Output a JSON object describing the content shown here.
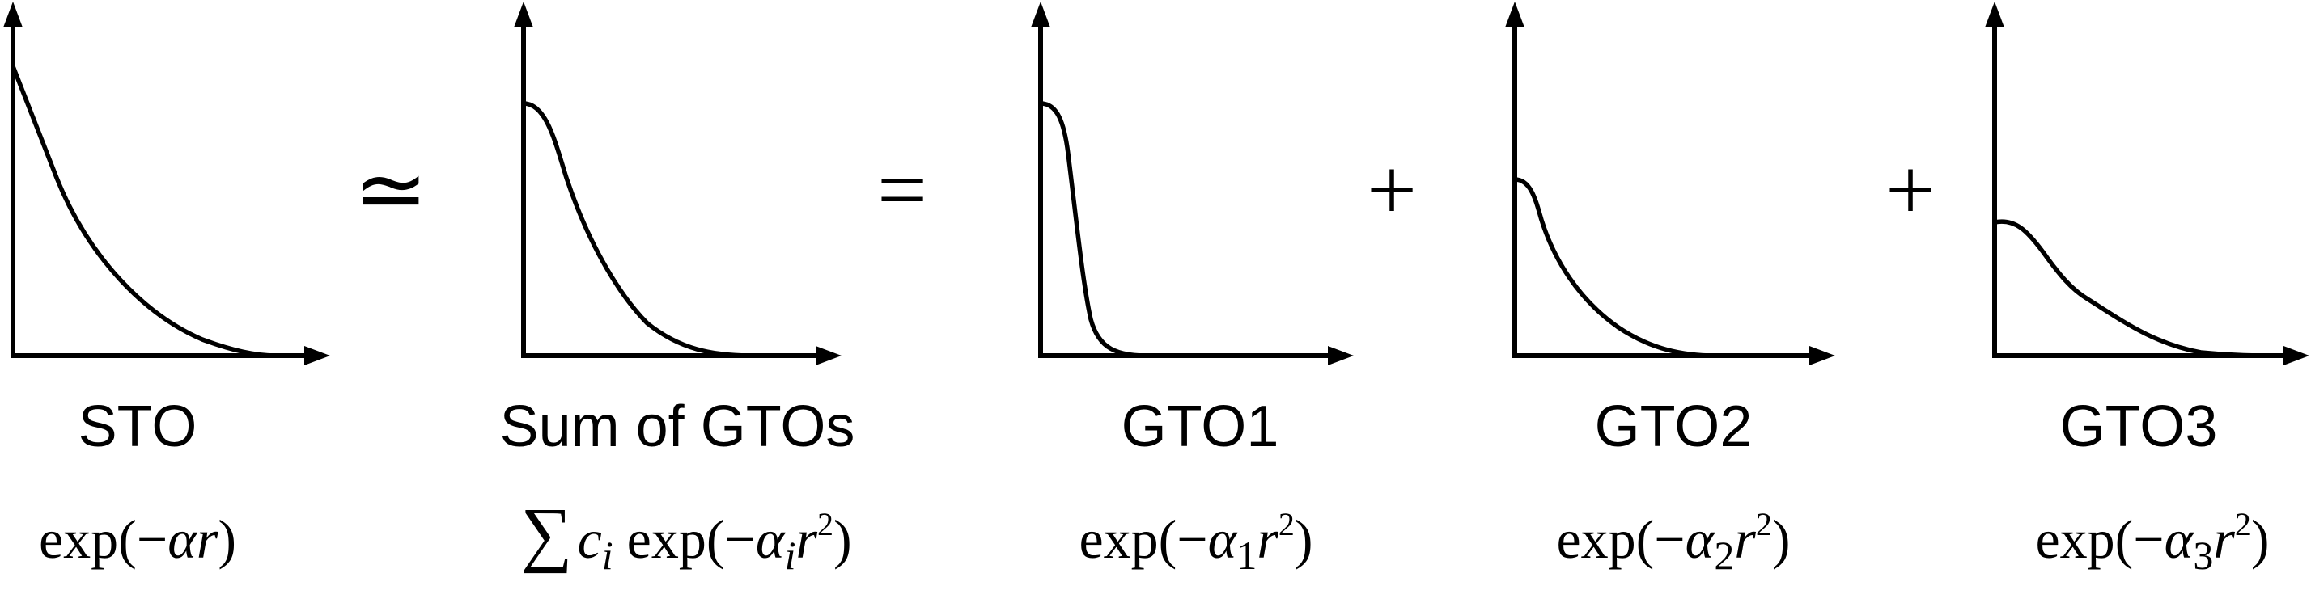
{
  "panels": [
    {
      "label": "STO",
      "formula": {
        "prefix": "exp(−",
        "var": "αr",
        "sub": "",
        "tail": ")"
      }
    },
    {
      "label": "Sum of GTOs",
      "formula": {
        "sigma": "∑",
        "coef": "c",
        "coef_sub": "i",
        "prefix": " exp(−",
        "var": "α",
        "sub": "i",
        "r": "r",
        "sup": "2",
        "tail": ")"
      }
    },
    {
      "label": "GTO1",
      "formula": {
        "prefix": "exp(−",
        "var": "α",
        "sub": "1",
        "r": "r",
        "sup": "2",
        "tail": ")"
      }
    },
    {
      "label": "GTO2",
      "formula": {
        "prefix": "exp(−",
        "var": "α",
        "sub": "2",
        "r": "r",
        "sup": "2",
        "tail": ")"
      }
    },
    {
      "label": "GTO3",
      "formula": {
        "prefix": "exp(−",
        "var": "α",
        "sub": "3",
        "r": "r",
        "sup": "2",
        "tail": ")"
      }
    }
  ],
  "operators": {
    "approx": "≃",
    "equals": "=",
    "plus1": "+",
    "plus2": "+"
  }
}
